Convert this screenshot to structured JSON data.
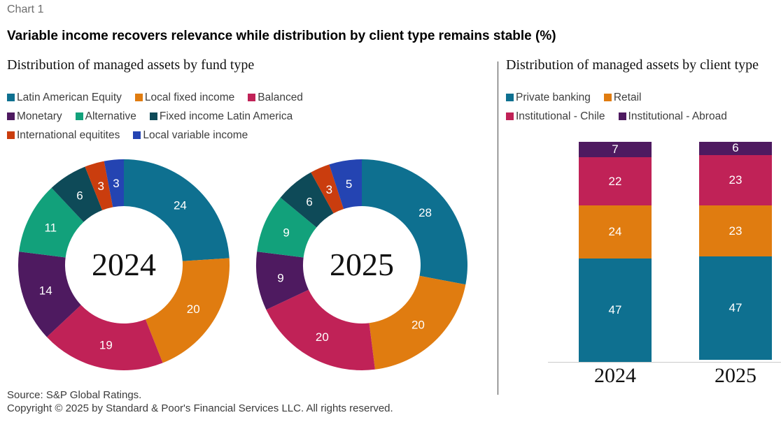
{
  "page": {
    "eyebrow": "Chart 1",
    "title": "Variable income recovers relevance while distribution by client type remains stable (%)",
    "footer": [
      "Source: S&P Global Ratings.",
      "Copyright © 2025 by Standard & Poor's Financial Services LLC. All rights reserved."
    ],
    "colors": {
      "eyebrow_text": "#6d6d6d",
      "legend_text": "#3e3e3e",
      "footer_text": "#3b3b3b",
      "divider": "#4a4a4a",
      "axis_line": "#cbcbcb"
    }
  },
  "chart_data": [
    {
      "type": "pie",
      "subtype": "donut",
      "title": "Distribution of managed assets by fund type",
      "unit": "%",
      "legend_position": "top",
      "categories": [
        "Latin American Equity",
        "Local fixed income",
        "Balanced",
        "Monetary",
        "Alternative",
        "Fixed income Latin America",
        "International equitites",
        "Local variable income"
      ],
      "colors": [
        "#0e7090",
        "#e07c10",
        "#c02257",
        "#4e1a60",
        "#12a17b",
        "#0e4a58",
        "#ca3d0e",
        "#2444b2"
      ],
      "series": [
        {
          "name": "2024",
          "values": [
            24,
            20,
            19,
            14,
            11,
            6,
            3,
            3
          ]
        },
        {
          "name": "2025",
          "values": [
            28,
            20,
            20,
            9,
            9,
            6,
            3,
            5
          ]
        }
      ]
    },
    {
      "type": "bar",
      "stacked": true,
      "title": "Distribution of managed assets by client type",
      "unit": "%",
      "legend_position": "top",
      "ylim": [
        0,
        100
      ],
      "categories": [
        "2024",
        "2025"
      ],
      "series": [
        {
          "name": "Private banking",
          "color": "#0e7090",
          "values": [
            47,
            47
          ]
        },
        {
          "name": "Retail",
          "color": "#e07c10",
          "values": [
            24,
            23
          ]
        },
        {
          "name": "Institutional - Chile",
          "color": "#c02257",
          "values": [
            22,
            23
          ]
        },
        {
          "name": "Institutional - Abroad",
          "color": "#4e1a60",
          "values": [
            7,
            6
          ]
        }
      ]
    }
  ]
}
